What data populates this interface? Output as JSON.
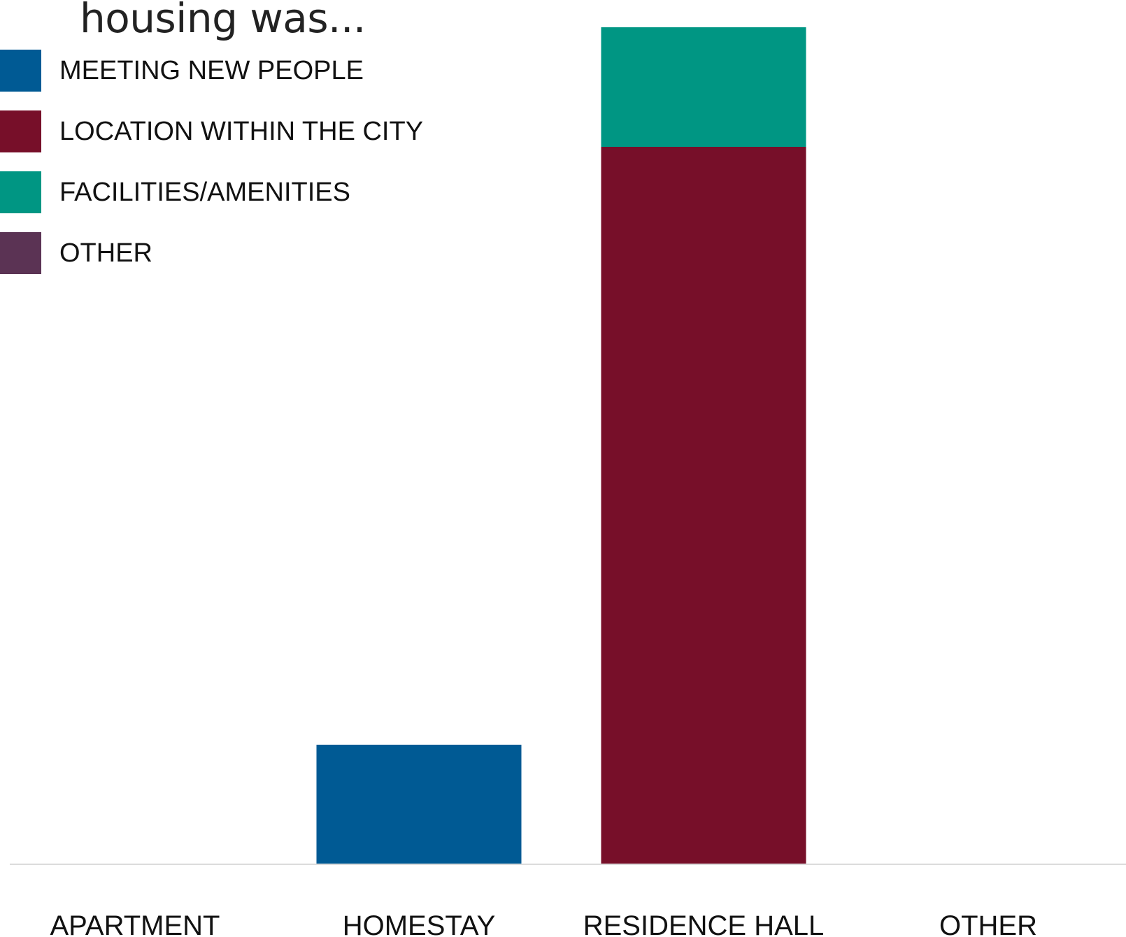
{
  "chart_data": {
    "type": "bar",
    "stacked": true,
    "title": "housing was...",
    "categories": [
      "APARTMENT",
      "HOMESTAY",
      "RESIDENCE HALL",
      "OTHER"
    ],
    "series": [
      {
        "name": "MEETING NEW PEOPLE",
        "color": "#005a94",
        "values": [
          0,
          1,
          0,
          0
        ]
      },
      {
        "name": "LOCATION WITHIN THE CITY",
        "color": "#770f29",
        "values": [
          0,
          0,
          6,
          0
        ]
      },
      {
        "name": "FACILITIES/AMENITIES",
        "color": "#009683",
        "values": [
          0,
          0,
          1,
          0
        ]
      },
      {
        "name": "OTHER",
        "color": "#5b3354",
        "values": [
          0,
          0,
          0,
          0
        ]
      }
    ],
    "ylim": [
      0,
      7
    ],
    "grid": false,
    "legend_position": "top-left",
    "axis_color": "#dcdcdc"
  }
}
